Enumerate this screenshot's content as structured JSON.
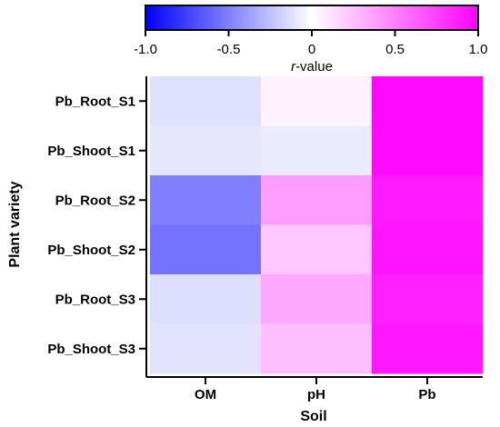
{
  "chart_data": {
    "type": "heatmap",
    "columns": [
      "OM",
      "pH",
      "Pb"
    ],
    "rows": [
      "Pb_Root_S1",
      "Pb_Shoot_S1",
      "Pb_Root_S2",
      "Pb_Shoot_S2",
      "Pb_Root_S3",
      "Pb_Shoot_S3"
    ],
    "values": [
      [
        -0.12,
        0.05,
        0.97
      ],
      [
        -0.1,
        -0.08,
        0.96
      ],
      [
        -0.5,
        0.38,
        0.9
      ],
      [
        -0.55,
        0.22,
        0.92
      ],
      [
        -0.13,
        0.34,
        0.88
      ],
      [
        -0.11,
        0.25,
        0.91
      ]
    ],
    "xlabel": "Soil",
    "ylabel": "Plant variety",
    "colorbar": {
      "title_italic": "r",
      "title_rest": "-value",
      "range": [
        -1.0,
        1.0
      ],
      "ticks": [
        -1.0,
        -0.5,
        0,
        0.5,
        1.0
      ],
      "tick_labels": [
        "-1.0",
        "-0.5",
        "0",
        "0.5",
        "1.0"
      ],
      "color_low": "#0000ff",
      "color_mid": "#ffffff",
      "color_high": "#ff00ff"
    }
  }
}
